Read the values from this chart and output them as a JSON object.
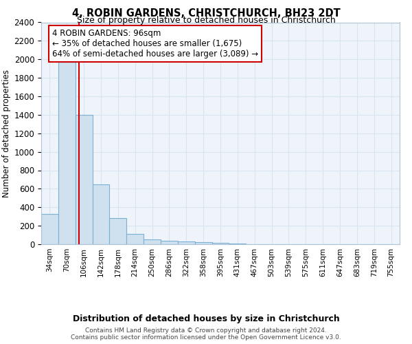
{
  "title": "4, ROBIN GARDENS, CHRISTCHURCH, BH23 2DT",
  "subtitle": "Size of property relative to detached houses in Christchurch",
  "xlabel": "Distribution of detached houses by size in Christchurch",
  "ylabel": "Number of detached properties",
  "bar_labels": [
    "34sqm",
    "70sqm",
    "106sqm",
    "142sqm",
    "178sqm",
    "214sqm",
    "250sqm",
    "286sqm",
    "322sqm",
    "358sqm",
    "395sqm",
    "431sqm",
    "467sqm",
    "503sqm",
    "539sqm",
    "575sqm",
    "611sqm",
    "647sqm",
    "683sqm",
    "719sqm",
    "755sqm"
  ],
  "bar_heights": [
    330,
    1975,
    1400,
    650,
    280,
    110,
    50,
    35,
    30,
    20,
    15,
    5,
    3,
    2,
    1,
    1,
    0,
    0,
    0,
    0,
    0
  ],
  "bar_color": "#cfe0ef",
  "bar_edge_color": "#7ab0d4",
  "ylim": [
    0,
    2400
  ],
  "yticks": [
    0,
    200,
    400,
    600,
    800,
    1000,
    1200,
    1400,
    1600,
    1800,
    2000,
    2200,
    2400
  ],
  "property_line_color": "#cc0000",
  "annotation_text": "4 ROBIN GARDENS: 96sqm\n← 35% of detached houses are smaller (1,675)\n64% of semi-detached houses are larger (3,089) →",
  "annotation_box_color": "#ffffff",
  "annotation_box_edge_color": "#cc0000",
  "footnote": "Contains HM Land Registry data © Crown copyright and database right 2024.\nContains public sector information licensed under the Open Government Licence v3.0.",
  "grid_color": "#d8e4f0",
  "background_color": "#eef4fa"
}
